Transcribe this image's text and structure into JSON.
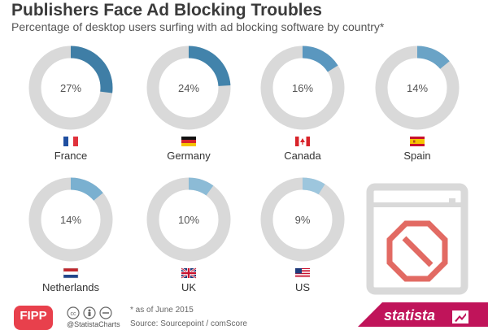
{
  "chart_data": {
    "type": "donut",
    "title": "Publishers Face Ad Blocking Troubles",
    "subtitle": "Percentage of desktop users surfing with ad blocking software by country*",
    "unit": "%",
    "categories": [
      "France",
      "Germany",
      "Canada",
      "Spain",
      "Netherlands",
      "UK",
      "US"
    ],
    "values": [
      27,
      24,
      16,
      14,
      14,
      10,
      9
    ],
    "labels": [
      "27%",
      "24%",
      "16%",
      "14%",
      "14%",
      "10%",
      "9%"
    ],
    "colors": {
      "track": "#d9d9d9",
      "filled": [
        "#3f7ea6",
        "#4283ab",
        "#5a97bf",
        "#6aa3c6",
        "#7ab0d0",
        "#8cbbd6",
        "#9dc6dd"
      ]
    }
  },
  "flags": [
    "france-flag",
    "germany-flag",
    "canada-flag",
    "spain-flag",
    "netherlands-flag",
    "uk-flag",
    "us-flag"
  ],
  "footer": {
    "note": "* as of June 2015",
    "source": "Source: Sourcepoint / comScore",
    "handle": "@StatistaCharts",
    "fipp": "FIPP",
    "brand": "statista"
  }
}
